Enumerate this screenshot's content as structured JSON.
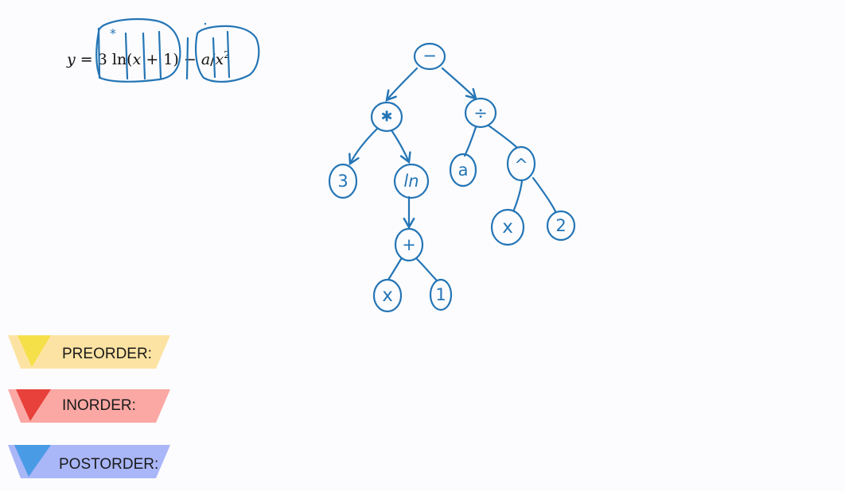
{
  "equation": {
    "y": "y",
    "equals": " = ",
    "coef": "3",
    "ln": " ln(",
    "x1": "x",
    "plus_one": " + 1)",
    "minus": " − ",
    "a": "a",
    "slash": "/",
    "x2": "x",
    "exponent": "2"
  },
  "annotation": {
    "mark": "*"
  },
  "tree": {
    "root": {
      "label": "−"
    },
    "times": {
      "label": "✱"
    },
    "divide": {
      "label": "÷"
    },
    "three": {
      "label": "3"
    },
    "ln": {
      "label": "ln"
    },
    "a": {
      "label": "a"
    },
    "power": {
      "label": "^"
    },
    "plus": {
      "label": "+"
    },
    "x_plus": {
      "label": "x"
    },
    "one": {
      "label": "1"
    },
    "x_power": {
      "label": "x"
    },
    "two": {
      "label": "2"
    }
  },
  "traversals": [
    {
      "label": "PREORDER:",
      "color": "#fde3a3",
      "tab_color": "#f6e04a"
    },
    {
      "label": "INORDER:",
      "color": "#fba8a4",
      "tab_color": "#e8403a"
    },
    {
      "label": "POSTORDER:",
      "color": "#a9b6f8",
      "tab_color": "#4a9be6"
    }
  ]
}
